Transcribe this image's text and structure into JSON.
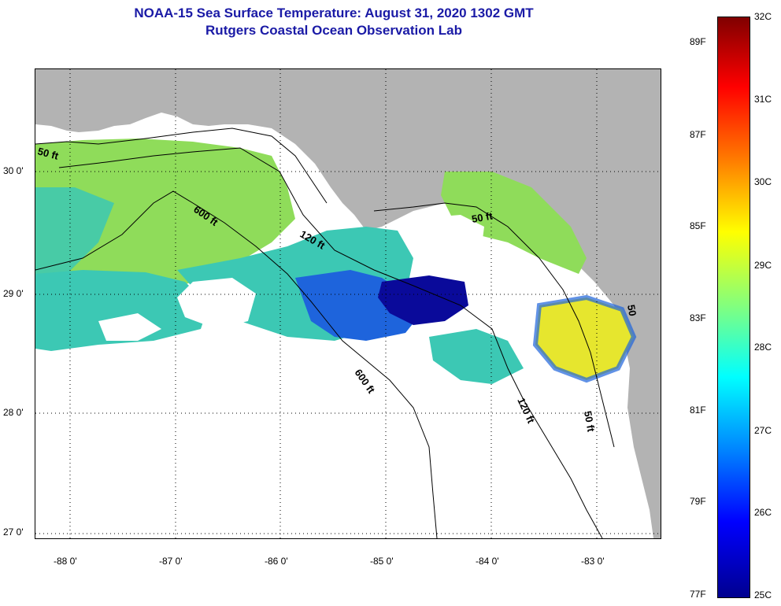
{
  "title": {
    "line1": "NOAA-15 Sea Surface Temperature:  August 31, 2020 1302 GMT",
    "line2": "Rutgers Coastal Ocean Observation Lab"
  },
  "map": {
    "lat_labels": [
      "30 0'",
      "29 0'",
      "28 0'",
      "27 0'"
    ],
    "lon_labels": [
      "-88 0'",
      "-87 0'",
      "-86 0'",
      "-85 0'",
      "-84 0'",
      "-83 0'"
    ],
    "contour_labels": [
      "50 ft",
      "600 ft",
      "120 ft",
      "50 ft",
      "600 ft",
      "120 ft",
      "50 ft",
      "50"
    ],
    "colors": {
      "land": "#b3b3b3",
      "no_data": "#ffffff",
      "warm": "#e6e62e",
      "mild": "#8fdc5a",
      "cool": "#3cc8b4",
      "cold": "#1e64dc",
      "coldest": "#0a0a9a"
    }
  },
  "colorbar": {
    "celsius_labels": [
      "32C",
      "31C",
      "30C",
      "29C",
      "28C",
      "27C",
      "26C",
      "25C"
    ],
    "fahrenheit_labels": [
      "89F",
      "87F",
      "85F",
      "83F",
      "81F",
      "79F",
      "77F"
    ]
  }
}
